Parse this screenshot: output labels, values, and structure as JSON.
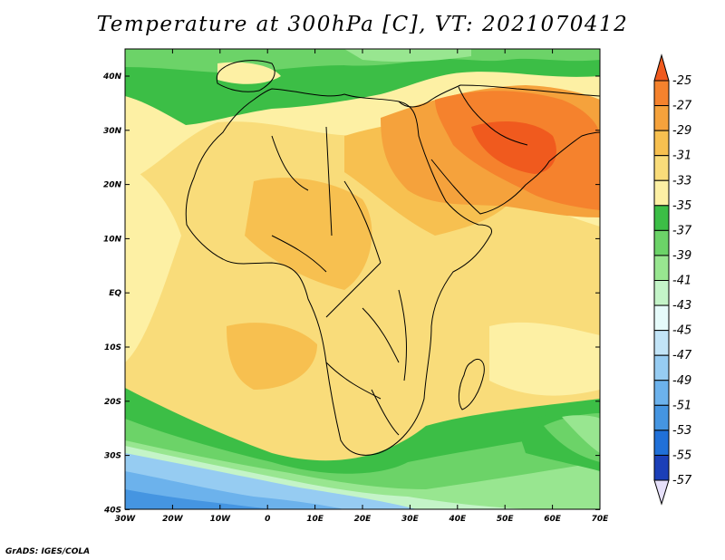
{
  "title": "Temperature at 300hPa [C], VT: 2021070412",
  "credit": "GrADS: IGES/COLA",
  "lon_labels": [
    "30W",
    "20W",
    "10W",
    "0",
    "10E",
    "20E",
    "30E",
    "40E",
    "50E",
    "60E",
    "70E"
  ],
  "lat_labels": [
    "40N",
    "30N",
    "20N",
    "10N",
    "EQ",
    "10S",
    "20S",
    "30S",
    "40S"
  ],
  "colorbar": {
    "labels": [
      "-25",
      "-27",
      "-29",
      "-31",
      "-33",
      "-35",
      "-37",
      "-39",
      "-41",
      "-43",
      "-45",
      "-47",
      "-49",
      "-51",
      "-53",
      "-55",
      "-57"
    ],
    "colors": [
      "#f05a1e",
      "#f5822d",
      "#f5a23c",
      "#f7c050",
      "#f9dc7a",
      "#fdf0a4",
      "#3cbe46",
      "#6cd368",
      "#98e690",
      "#c4f4c8",
      "#e6fbfa",
      "#c2e4f7",
      "#96ccf2",
      "#6cb2ec",
      "#4595e1",
      "#2070d8",
      "#1b3fb8",
      "#0c1a7c"
    ]
  }
}
